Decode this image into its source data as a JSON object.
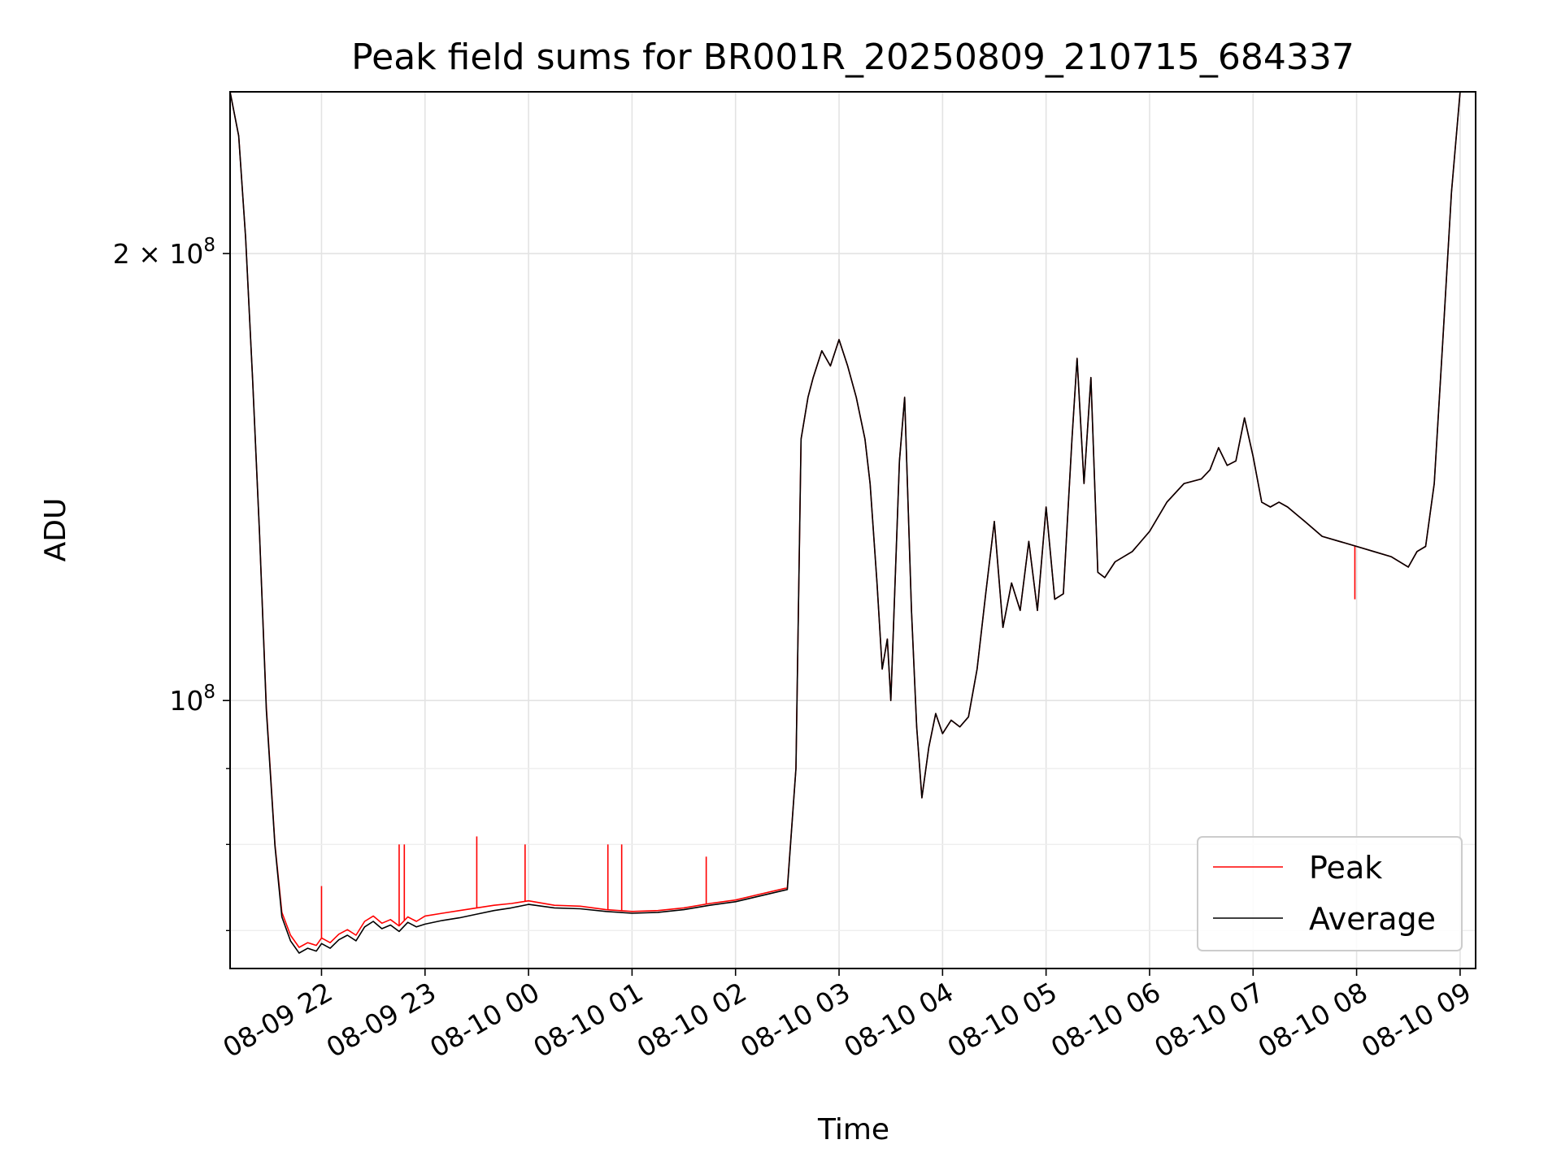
{
  "chart_data": {
    "type": "line",
    "title": "Peak field sums for BR001R_20250809_210715_684337",
    "xlabel": "Time",
    "ylabel": "ADU",
    "yscale": "log",
    "xlim": [
      "2025-08-09 21:07",
      "2025-08-10 09:09"
    ],
    "ylim": [
      66000000,
      257000000
    ],
    "grid": true,
    "legend": "lower-right",
    "x_ticks": [
      "2025-08-09 22:00",
      "2025-08-09 23:00",
      "2025-08-10 00:00",
      "2025-08-10 01:00",
      "2025-08-10 02:00",
      "2025-08-10 03:00",
      "2025-08-10 04:00",
      "2025-08-10 05:00",
      "2025-08-10 06:00",
      "2025-08-10 07:00",
      "2025-08-10 08:00",
      "2025-08-10 09:00"
    ],
    "x_tick_labels": [
      "08-09 22",
      "08-09 23",
      "08-10 00",
      "08-10 01",
      "08-10 02",
      "08-10 03",
      "08-10 04",
      "08-10 05",
      "08-10 06",
      "08-10 07",
      "08-10 08",
      "08-10 09"
    ],
    "y_major_ticks": [
      {
        "value": 100000000,
        "base": "10",
        "exp": "8",
        "coef": ""
      },
      {
        "value": 200000000,
        "base": "10",
        "exp": "8",
        "coef": "2 × "
      }
    ],
    "y_minor_ticks": [
      70000000,
      80000000,
      90000000
    ],
    "x": [
      "2025-08-09 21:07",
      "2025-08-09 21:12",
      "2025-08-09 21:16",
      "2025-08-09 21:20",
      "2025-08-09 21:24",
      "2025-08-09 21:28",
      "2025-08-09 21:33",
      "2025-08-09 21:37",
      "2025-08-09 21:42",
      "2025-08-09 21:47",
      "2025-08-09 21:52",
      "2025-08-09 21:57",
      "2025-08-09 22:00",
      "2025-08-09 22:05",
      "2025-08-09 22:10",
      "2025-08-09 22:15",
      "2025-08-09 22:20",
      "2025-08-09 22:25",
      "2025-08-09 22:30",
      "2025-08-09 22:35",
      "2025-08-09 22:40",
      "2025-08-09 22:45",
      "2025-08-09 22:50",
      "2025-08-09 22:55",
      "2025-08-09 23:00",
      "2025-08-09 23:10",
      "2025-08-09 23:20",
      "2025-08-09 23:30",
      "2025-08-09 23:40",
      "2025-08-09 23:50",
      "2025-08-10 00:00",
      "2025-08-10 00:15",
      "2025-08-10 00:30",
      "2025-08-10 00:45",
      "2025-08-10 01:00",
      "2025-08-10 01:15",
      "2025-08-10 01:30",
      "2025-08-10 01:45",
      "2025-08-10 02:00",
      "2025-08-10 02:15",
      "2025-08-10 02:30",
      "2025-08-10 02:35",
      "2025-08-10 02:38",
      "2025-08-10 02:42",
      "2025-08-10 02:45",
      "2025-08-10 02:50",
      "2025-08-10 02:55",
      "2025-08-10 03:00",
      "2025-08-10 03:05",
      "2025-08-10 03:10",
      "2025-08-10 03:15",
      "2025-08-10 03:18",
      "2025-08-10 03:22",
      "2025-08-10 03:25",
      "2025-08-10 03:28",
      "2025-08-10 03:30",
      "2025-08-10 03:35",
      "2025-08-10 03:38",
      "2025-08-10 03:42",
      "2025-08-10 03:45",
      "2025-08-10 03:48",
      "2025-08-10 03:52",
      "2025-08-10 03:56",
      "2025-08-10 04:00",
      "2025-08-10 04:05",
      "2025-08-10 04:10",
      "2025-08-10 04:15",
      "2025-08-10 04:20",
      "2025-08-10 04:25",
      "2025-08-10 04:30",
      "2025-08-10 04:35",
      "2025-08-10 04:40",
      "2025-08-10 04:45",
      "2025-08-10 04:50",
      "2025-08-10 04:55",
      "2025-08-10 05:00",
      "2025-08-10 05:05",
      "2025-08-10 05:10",
      "2025-08-10 05:15",
      "2025-08-10 05:18",
      "2025-08-10 05:22",
      "2025-08-10 05:26",
      "2025-08-10 05:30",
      "2025-08-10 05:34",
      "2025-08-10 05:40",
      "2025-08-10 05:50",
      "2025-08-10 06:00",
      "2025-08-10 06:10",
      "2025-08-10 06:20",
      "2025-08-10 06:30",
      "2025-08-10 06:35",
      "2025-08-10 06:40",
      "2025-08-10 06:45",
      "2025-08-10 06:50",
      "2025-08-10 06:55",
      "2025-08-10 07:00",
      "2025-08-10 07:05",
      "2025-08-10 07:10",
      "2025-08-10 07:15",
      "2025-08-10 07:20",
      "2025-08-10 07:30",
      "2025-08-10 07:40",
      "2025-08-10 07:50",
      "2025-08-10 08:00",
      "2025-08-10 08:10",
      "2025-08-10 08:20",
      "2025-08-10 08:30",
      "2025-08-10 08:35",
      "2025-08-10 08:40",
      "2025-08-10 08:45",
      "2025-08-10 08:50",
      "2025-08-10 08:55",
      "2025-08-10 09:00",
      "2025-08-10 09:03"
    ],
    "series": [
      {
        "name": "Peak",
        "color": "#ff0000",
        "values": [
          257000000,
          240000000,
          205000000,
          165000000,
          130000000,
          99000000,
          80000000,
          72000000,
          69500000,
          68200000,
          68700000,
          68400000,
          69200000,
          68700000,
          69600000,
          70100000,
          69500000,
          71000000,
          71600000,
          70800000,
          71200000,
          70500000,
          71500000,
          71000000,
          71600000,
          71900000,
          72200000,
          72500000,
          72800000,
          73000000,
          73300000,
          72800000,
          72700000,
          72300000,
          72100000,
          72200000,
          72500000,
          73000000,
          73400000,
          74100000,
          74800000,
          90000000,
          150000000,
          160000000,
          165000000,
          172000000,
          168000000,
          175000000,
          168000000,
          160000000,
          150000000,
          140000000,
          120000000,
          105000000,
          110000000,
          100000000,
          145000000,
          160000000,
          115000000,
          96000000,
          86000000,
          93000000,
          98000000,
          95000000,
          97000000,
          96000000,
          97500000,
          105000000,
          118000000,
          132000000,
          112000000,
          120000000,
          115000000,
          128000000,
          115000000,
          135000000,
          117000000,
          118000000,
          150000000,
          170000000,
          140000000,
          165000000,
          122000000,
          121000000,
          124000000,
          126000000,
          130000000,
          136000000,
          140000000,
          141000000,
          143000000,
          148000000,
          144000000,
          145000000,
          155000000,
          146000000,
          136000000,
          135000000,
          136000000,
          135000000,
          132000000,
          129000000,
          128000000,
          127000000,
          126000000,
          125000000,
          123000000,
          126000000,
          127000000,
          140000000,
          175000000,
          220000000,
          257000000,
          257000000
        ]
      },
      {
        "name": "Average",
        "color": "#000000",
        "values": [
          257000000,
          240000000,
          205000000,
          165000000,
          130000000,
          98500000,
          79800000,
          71500000,
          68900000,
          67600000,
          68100000,
          67800000,
          68600000,
          68100000,
          69000000,
          69500000,
          68900000,
          70400000,
          71000000,
          70200000,
          70600000,
          69900000,
          70900000,
          70400000,
          70700000,
          71100000,
          71400000,
          71800000,
          72200000,
          72500000,
          72900000,
          72500000,
          72400000,
          72100000,
          71900000,
          72000000,
          72300000,
          72800000,
          73200000,
          73900000,
          74600000,
          90000000,
          150000000,
          160000000,
          165000000,
          172000000,
          168000000,
          175000000,
          168000000,
          160000000,
          150000000,
          140000000,
          120000000,
          105000000,
          110000000,
          100000000,
          145000000,
          160000000,
          115000000,
          96000000,
          86000000,
          93000000,
          98000000,
          95000000,
          97000000,
          96000000,
          97500000,
          105000000,
          118000000,
          132000000,
          112000000,
          120000000,
          115000000,
          128000000,
          115000000,
          135000000,
          117000000,
          118000000,
          150000000,
          170000000,
          140000000,
          165000000,
          122000000,
          121000000,
          124000000,
          126000000,
          130000000,
          136000000,
          140000000,
          141000000,
          143000000,
          148000000,
          144000000,
          145000000,
          155000000,
          146000000,
          136000000,
          135000000,
          136000000,
          135000000,
          132000000,
          129000000,
          128000000,
          127000000,
          126000000,
          125000000,
          123000000,
          126000000,
          127000000,
          140000000,
          175000000,
          220000000,
          257000000,
          257000000
        ]
      }
    ],
    "peak_spikes": [
      {
        "x": "2025-08-09 22:00",
        "value": 75000000
      },
      {
        "x": "2025-08-09 22:45",
        "value": 80000000
      },
      {
        "x": "2025-08-09 22:48",
        "value": 80000000
      },
      {
        "x": "2025-08-09 23:30",
        "value": 81000000
      },
      {
        "x": "2025-08-09 23:58",
        "value": 80000000
      },
      {
        "x": "2025-08-10 00:46",
        "value": 80000000
      },
      {
        "x": "2025-08-10 00:54",
        "value": 80000000
      },
      {
        "x": "2025-08-10 01:43",
        "value": 78500000
      },
      {
        "x": "2025-08-10 07:59",
        "value": 117000000
      }
    ]
  }
}
